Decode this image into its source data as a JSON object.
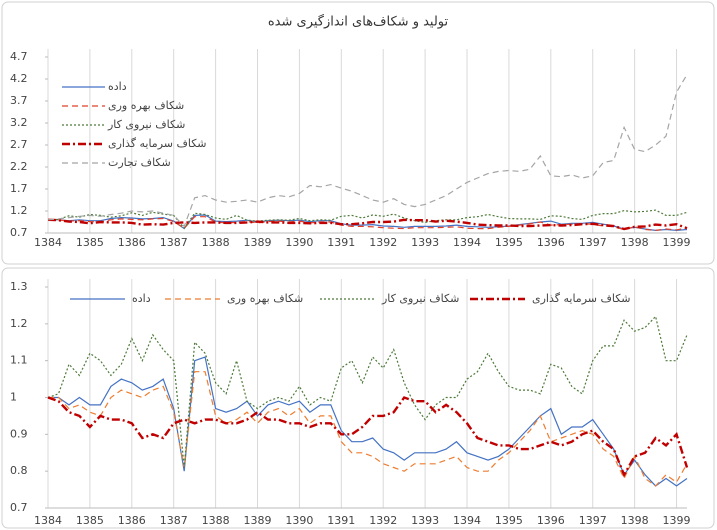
{
  "chart_data": [
    {
      "type": "line",
      "title": "تولید و شکاف‌های اندازگیری شده",
      "x": [
        1384,
        1384.25,
        1384.5,
        1384.75,
        1385,
        1385.25,
        1385.5,
        1385.75,
        1386,
        1386.25,
        1386.5,
        1386.75,
        1387,
        1387.25,
        1387.5,
        1387.75,
        1388,
        1388.25,
        1388.5,
        1388.75,
        1389,
        1389.25,
        1389.5,
        1389.75,
        1390,
        1390.25,
        1390.5,
        1390.75,
        1391,
        1391.25,
        1391.5,
        1391.75,
        1392,
        1392.25,
        1392.5,
        1392.75,
        1393,
        1393.25,
        1393.5,
        1393.75,
        1394,
        1394.25,
        1394.5,
        1394.75,
        1395,
        1395.25,
        1395.5,
        1395.75,
        1396,
        1396.25,
        1396.5,
        1396.75,
        1397,
        1397.25,
        1397.5,
        1397.75,
        1398,
        1398.25,
        1398.5,
        1398.75,
        1399,
        1399.25
      ],
      "xlim": [
        1384,
        1399.25
      ],
      "xticks": [
        1384,
        1385,
        1386,
        1387,
        1388,
        1389,
        1390,
        1391,
        1392,
        1393,
        1394,
        1395,
        1396,
        1397,
        1398,
        1399
      ],
      "ylim": [
        0.7,
        4.7
      ],
      "yticks": [
        0.7,
        1.2,
        1.7,
        2.2,
        2.7,
        3.2,
        3.7,
        4.2,
        4.7
      ],
      "grid": "x",
      "legend": "upper left",
      "series": [
        {
          "name": "داده",
          "color": "#4472c4",
          "style": "solid",
          "values": [
            1.0,
            1.0,
            0.98,
            1.0,
            0.98,
            0.98,
            1.03,
            1.05,
            1.04,
            1.02,
            1.03,
            1.05,
            0.97,
            0.8,
            1.1,
            1.11,
            0.97,
            0.96,
            0.97,
            0.99,
            0.95,
            0.98,
            0.99,
            0.98,
            0.99,
            0.96,
            0.98,
            0.98,
            0.91,
            0.88,
            0.88,
            0.89,
            0.86,
            0.85,
            0.83,
            0.85,
            0.85,
            0.85,
            0.86,
            0.88,
            0.85,
            0.84,
            0.83,
            0.84,
            0.86,
            0.89,
            0.92,
            0.95,
            0.97,
            0.9,
            0.92,
            0.92,
            0.94,
            0.9,
            0.86,
            0.79,
            0.83,
            0.79,
            0.76,
            0.78,
            0.76,
            0.78
          ]
        },
        {
          "name": "شکاف بهره وری",
          "color": "#e0402a",
          "style": "dashed",
          "values": [
            1.0,
            1.0,
            0.97,
            0.98,
            0.96,
            0.95,
            1.0,
            1.02,
            1.01,
            1.0,
            1.02,
            1.03,
            0.96,
            0.81,
            1.07,
            1.07,
            0.95,
            0.93,
            0.94,
            0.96,
            0.93,
            0.96,
            0.97,
            0.95,
            0.97,
            0.93,
            0.95,
            0.95,
            0.88,
            0.85,
            0.85,
            0.84,
            0.82,
            0.81,
            0.8,
            0.82,
            0.82,
            0.82,
            0.83,
            0.84,
            0.81,
            0.8,
            0.8,
            0.83,
            0.85,
            0.88,
            0.91,
            0.95,
            0.88,
            0.89,
            0.9,
            0.91,
            0.9,
            0.86,
            0.84,
            0.78,
            0.84,
            0.78,
            0.76,
            0.79,
            0.77,
            0.82
          ]
        },
        {
          "name": "شکاف نیروی کار",
          "color": "#4e7a3a",
          "style": "dotted",
          "values": [
            1.0,
            1.01,
            1.09,
            1.06,
            1.12,
            1.1,
            1.06,
            1.09,
            1.16,
            1.1,
            1.17,
            1.13,
            1.1,
            0.81,
            1.15,
            1.12,
            1.04,
            1.01,
            1.1,
            0.99,
            0.97,
            0.99,
            1.0,
            0.99,
            1.03,
            0.98,
            1.0,
            0.99,
            1.08,
            1.1,
            1.04,
            1.11,
            1.08,
            1.13,
            1.04,
            0.98,
            0.94,
            0.98,
            1.0,
            1.0,
            1.05,
            1.07,
            1.12,
            1.07,
            1.03,
            1.02,
            1.02,
            1.01,
            1.09,
            1.08,
            1.03,
            1.01,
            1.1,
            1.14,
            1.14,
            1.21,
            1.18,
            1.19,
            1.22,
            1.1,
            1.1,
            1.17
          ]
        },
        {
          "name": "شکاف سرمایه گذاری",
          "color": "#c00000",
          "style": "dashdot",
          "values": [
            1.0,
            0.99,
            0.96,
            0.95,
            0.92,
            0.95,
            0.94,
            0.94,
            0.93,
            0.89,
            0.9,
            0.89,
            0.93,
            0.94,
            0.93,
            0.94,
            0.94,
            0.93,
            0.93,
            0.94,
            0.96,
            0.94,
            0.94,
            0.93,
            0.93,
            0.92,
            0.93,
            0.93,
            0.9,
            0.9,
            0.92,
            0.95,
            0.95,
            0.96,
            1.0,
            0.99,
            0.99,
            0.96,
            0.98,
            0.96,
            0.93,
            0.89,
            0.88,
            0.87,
            0.87,
            0.86,
            0.86,
            0.87,
            0.88,
            0.87,
            0.88,
            0.9,
            0.91,
            0.88,
            0.86,
            0.79,
            0.84,
            0.85,
            0.89,
            0.87,
            0.9,
            0.81
          ]
        },
        {
          "name": "شکاف تجارت",
          "color": "#a5a5a5",
          "style": "dashed",
          "values": [
            1.0,
            1.02,
            1.05,
            1.08,
            1.1,
            1.08,
            1.12,
            1.15,
            1.2,
            1.18,
            1.2,
            1.15,
            1.1,
            0.85,
            1.5,
            1.55,
            1.45,
            1.4,
            1.42,
            1.45,
            1.4,
            1.5,
            1.55,
            1.52,
            1.6,
            1.78,
            1.75,
            1.8,
            1.72,
            1.65,
            1.55,
            1.45,
            1.4,
            1.48,
            1.35,
            1.3,
            1.35,
            1.45,
            1.55,
            1.7,
            1.85,
            1.95,
            2.05,
            2.1,
            2.12,
            2.1,
            2.15,
            2.45,
            2.0,
            1.98,
            2.02,
            1.95,
            2.0,
            2.3,
            2.35,
            3.1,
            2.6,
            2.55,
            2.7,
            2.9,
            3.9,
            4.3
          ]
        }
      ]
    },
    {
      "type": "line",
      "x": [
        1384,
        1384.25,
        1384.5,
        1384.75,
        1385,
        1385.25,
        1385.5,
        1385.75,
        1386,
        1386.25,
        1386.5,
        1386.75,
        1387,
        1387.25,
        1387.5,
        1387.75,
        1388,
        1388.25,
        1388.5,
        1388.75,
        1389,
        1389.25,
        1389.5,
        1389.75,
        1390,
        1390.25,
        1390.5,
        1390.75,
        1391,
        1391.25,
        1391.5,
        1391.75,
        1392,
        1392.25,
        1392.5,
        1392.75,
        1393,
        1393.25,
        1393.5,
        1393.75,
        1394,
        1394.25,
        1394.5,
        1394.75,
        1395,
        1395.25,
        1395.5,
        1395.75,
        1396,
        1396.25,
        1396.5,
        1396.75,
        1397,
        1397.25,
        1397.5,
        1397.75,
        1398,
        1398.25,
        1398.5,
        1398.75,
        1399,
        1399.25
      ],
      "xlim": [
        1384,
        1399.25
      ],
      "xticks": [
        1384,
        1385,
        1386,
        1387,
        1388,
        1389,
        1390,
        1391,
        1392,
        1393,
        1394,
        1395,
        1396,
        1397,
        1398,
        1399
      ],
      "ylim": [
        0.7,
        1.3
      ],
      "yticks": [
        0.7,
        0.8,
        0.9,
        1,
        1.1,
        1.2,
        1.3
      ],
      "grid": "x",
      "legend": "upper center",
      "series": [
        {
          "name": "داده",
          "color": "#4472c4",
          "style": "solid",
          "values": [
            1.0,
            1.0,
            0.98,
            1.0,
            0.98,
            0.98,
            1.03,
            1.05,
            1.04,
            1.02,
            1.03,
            1.05,
            0.97,
            0.8,
            1.1,
            1.11,
            0.97,
            0.96,
            0.97,
            0.99,
            0.95,
            0.98,
            0.99,
            0.98,
            0.99,
            0.96,
            0.98,
            0.98,
            0.91,
            0.88,
            0.88,
            0.89,
            0.86,
            0.85,
            0.83,
            0.85,
            0.85,
            0.85,
            0.86,
            0.88,
            0.85,
            0.84,
            0.83,
            0.84,
            0.86,
            0.89,
            0.92,
            0.95,
            0.97,
            0.9,
            0.92,
            0.92,
            0.94,
            0.9,
            0.86,
            0.79,
            0.83,
            0.79,
            0.76,
            0.78,
            0.76,
            0.78
          ]
        },
        {
          "name": "شکاف بهره وری",
          "color": "#ed7d31",
          "style": "dashed",
          "values": [
            1.0,
            1.0,
            0.97,
            0.98,
            0.96,
            0.95,
            1.0,
            1.02,
            1.01,
            1.0,
            1.02,
            1.03,
            0.96,
            0.81,
            1.07,
            1.07,
            0.95,
            0.93,
            0.94,
            0.96,
            0.93,
            0.96,
            0.97,
            0.95,
            0.97,
            0.93,
            0.95,
            0.95,
            0.88,
            0.85,
            0.85,
            0.84,
            0.82,
            0.81,
            0.8,
            0.82,
            0.82,
            0.82,
            0.83,
            0.84,
            0.81,
            0.8,
            0.8,
            0.83,
            0.85,
            0.88,
            0.91,
            0.95,
            0.88,
            0.89,
            0.9,
            0.91,
            0.9,
            0.86,
            0.84,
            0.78,
            0.84,
            0.78,
            0.76,
            0.79,
            0.77,
            0.82
          ]
        },
        {
          "name": "شکاف نیروی کار",
          "color": "#4e7a3a",
          "style": "dotted",
          "values": [
            1.0,
            1.01,
            1.09,
            1.06,
            1.12,
            1.1,
            1.06,
            1.09,
            1.16,
            1.1,
            1.17,
            1.13,
            1.1,
            0.81,
            1.15,
            1.12,
            1.04,
            1.01,
            1.1,
            0.99,
            0.97,
            0.99,
            1.0,
            0.99,
            1.03,
            0.98,
            1.0,
            0.99,
            1.08,
            1.1,
            1.04,
            1.11,
            1.08,
            1.13,
            1.04,
            0.98,
            0.94,
            0.98,
            1.0,
            1.0,
            1.05,
            1.07,
            1.12,
            1.07,
            1.03,
            1.02,
            1.02,
            1.01,
            1.09,
            1.08,
            1.03,
            1.01,
            1.1,
            1.14,
            1.14,
            1.21,
            1.18,
            1.19,
            1.22,
            1.1,
            1.1,
            1.17
          ]
        },
        {
          "name": "شکاف سرمایه گذاری",
          "color": "#c00000",
          "style": "dashdot",
          "values": [
            1.0,
            0.99,
            0.96,
            0.95,
            0.92,
            0.95,
            0.94,
            0.94,
            0.93,
            0.89,
            0.9,
            0.89,
            0.93,
            0.94,
            0.93,
            0.94,
            0.94,
            0.93,
            0.93,
            0.94,
            0.96,
            0.94,
            0.94,
            0.93,
            0.93,
            0.92,
            0.93,
            0.93,
            0.9,
            0.9,
            0.92,
            0.95,
            0.95,
            0.96,
            1.0,
            0.99,
            0.99,
            0.96,
            0.98,
            0.96,
            0.93,
            0.89,
            0.88,
            0.87,
            0.87,
            0.86,
            0.86,
            0.87,
            0.88,
            0.87,
            0.88,
            0.9,
            0.91,
            0.88,
            0.86,
            0.79,
            0.84,
            0.85,
            0.89,
            0.87,
            0.9,
            0.81
          ]
        }
      ]
    }
  ]
}
